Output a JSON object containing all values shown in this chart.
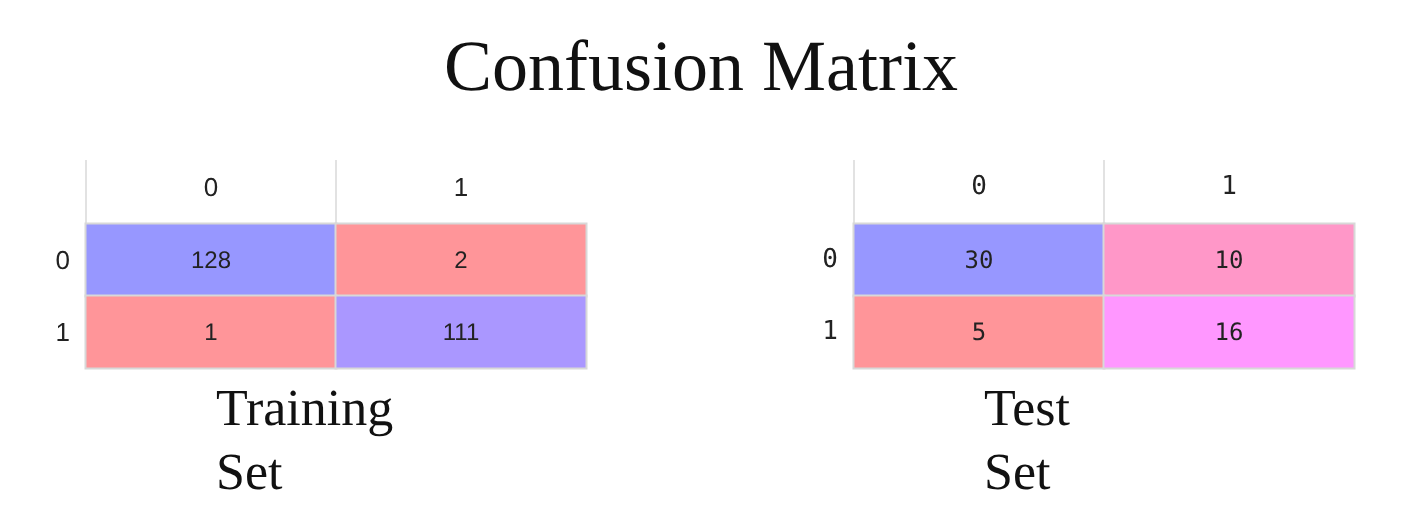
{
  "chart_data": [
    {
      "type": "heatmap",
      "title": "Confusion Matrix",
      "xlabel": "Training Set",
      "categories": [
        "0",
        "1"
      ],
      "y_categories": [
        "0",
        "1"
      ],
      "cells": [
        [
          128,
          2
        ],
        [
          1,
          111
        ]
      ],
      "colors": [
        [
          "#9797ff",
          "#ff9599"
        ],
        [
          "#ff9599",
          "#aa97ff"
        ]
      ],
      "data_labels": true
    },
    {
      "type": "heatmap",
      "xlabel": "Test Set",
      "categories": [
        "0",
        "1"
      ],
      "y_categories": [
        "0",
        "1"
      ],
      "cells": [
        [
          30,
          10
        ],
        [
          5,
          16
        ]
      ],
      "colors": [
        [
          "#9797ff",
          "#ff97c8"
        ],
        [
          "#ff9599",
          "#ff97ff"
        ]
      ],
      "data_labels": true
    }
  ]
}
